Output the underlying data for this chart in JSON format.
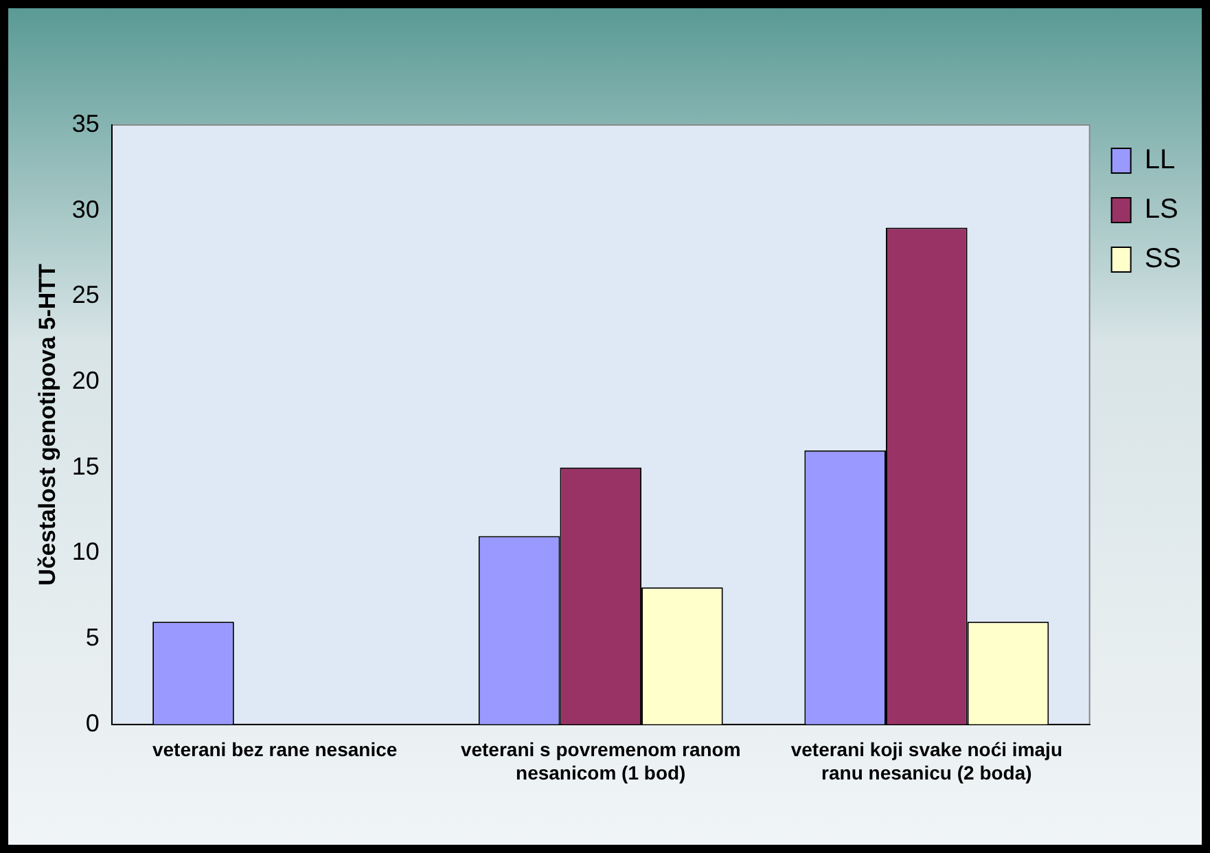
{
  "chart_data": {
    "type": "bar",
    "ylabel": "Učestalost genotipova 5-HTT",
    "categories": [
      "veterani bez rane nesanice",
      "veterani s povremenom ranom nesanicom (1 bod)",
      "veterani koji svake noći imaju ranu nesanicu (2 boda)"
    ],
    "series": [
      {
        "name": "LL",
        "color": "#9999ff",
        "values": [
          6,
          11,
          16
        ]
      },
      {
        "name": "LS",
        "color": "#993366",
        "values": [
          0,
          15,
          29
        ]
      },
      {
        "name": "SS",
        "color": "#ffffcc",
        "values": [
          0,
          8,
          6
        ]
      }
    ],
    "ylim": [
      0,
      35
    ],
    "yticks": [
      0,
      5,
      10,
      15,
      20,
      25,
      30,
      35
    ],
    "grid": false,
    "legend": "top right"
  }
}
